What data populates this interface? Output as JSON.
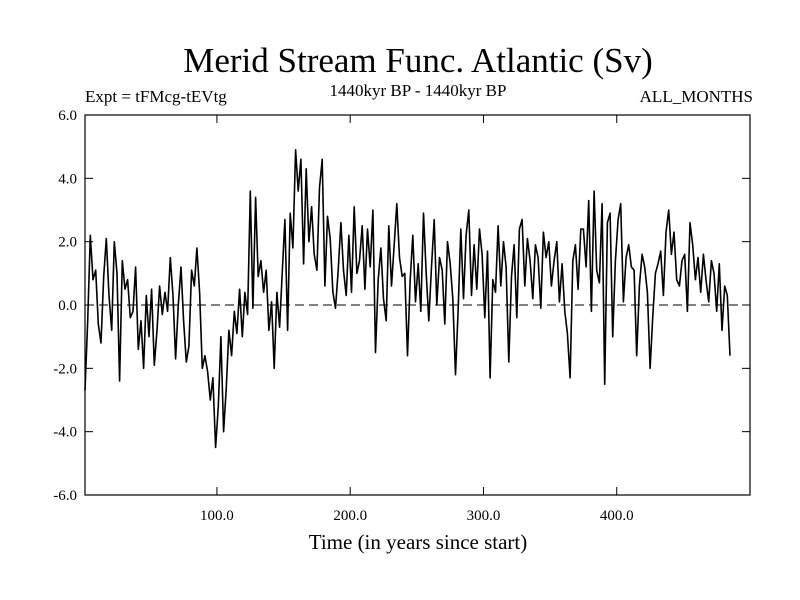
{
  "chart_data": {
    "type": "line",
    "title": "Merid Stream Func. Atlantic (Sv)",
    "subtitle_left": "Expt = tFMcg-tEVtg",
    "subtitle_center": "1440kyr BP - 1440kyr BP",
    "subtitle_right": "ALL_MONTHS",
    "xlabel": "Time (in years since start)",
    "ylabel": "",
    "xlim": [
      1,
      500
    ],
    "ylim": [
      -6,
      6
    ],
    "x_ticks": [
      100,
      200,
      300,
      400
    ],
    "x_tick_labels": [
      "100.0",
      "200.0",
      "300.0",
      "400.0"
    ],
    "y_ticks": [
      -6,
      -4,
      -2,
      0,
      2,
      4,
      6
    ],
    "y_tick_labels": [
      "-6.0",
      "-4.0",
      "-2.0",
      "0.0",
      "2.0",
      "4.0",
      "6.0"
    ],
    "zero_line": "dashed",
    "grid": false,
    "series": [
      {
        "name": "Merid Stream Func. Atlantic",
        "x_start": 1,
        "x_step": 2,
        "values": [
          -2.7,
          -0.5,
          2.2,
          0.8,
          1.1,
          -0.6,
          -1.2,
          0.9,
          2.1,
          0.3,
          -0.8,
          2.0,
          1.0,
          -2.4,
          1.4,
          0.5,
          0.8,
          -0.4,
          -0.2,
          1.2,
          -1.4,
          -0.5,
          -2.0,
          0.3,
          -1.0,
          0.5,
          -1.9,
          -0.8,
          0.6,
          -0.3,
          0.4,
          -0.2,
          1.5,
          0.3,
          -1.7,
          0.0,
          1.2,
          -0.5,
          -1.8,
          -1.3,
          1.1,
          0.6,
          1.8,
          0.4,
          -2.0,
          -1.6,
          -2.1,
          -3.0,
          -2.3,
          -4.5,
          -3.2,
          -1.0,
          -4.0,
          -2.6,
          -0.8,
          -1.6,
          -0.2,
          -0.9,
          0.5,
          -1.0,
          0.4,
          -0.3,
          3.6,
          -0.1,
          3.4,
          0.9,
          1.4,
          0.4,
          1.1,
          -0.8,
          0.1,
          -2.0,
          0.4,
          -0.7,
          1.0,
          2.7,
          -0.8,
          2.9,
          1.8,
          4.9,
          3.6,
          4.6,
          1.3,
          4.3,
          2.0,
          3.1,
          1.6,
          1.1,
          3.7,
          4.6,
          0.6,
          2.8,
          2.1,
          0.4,
          -0.1,
          1.1,
          2.6,
          1.1,
          0.3,
          2.2,
          0.4,
          3.1,
          1.0,
          1.4,
          2.5,
          0.5,
          2.4,
          1.2,
          3.0,
          -1.5,
          0.8,
          1.8,
          0.2,
          -0.5,
          2.5,
          0.6,
          1.9,
          3.2,
          1.5,
          0.9,
          1.0,
          -1.6,
          0.8,
          2.2,
          0.1,
          1.3,
          -0.2,
          2.9,
          1.0,
          -0.5,
          1.2,
          2.7,
          0.0,
          1.5,
          1.1,
          -0.6,
          2.0,
          1.3,
          0.2,
          -2.2,
          -0.2,
          2.4,
          0.2,
          2.2,
          3.0,
          0.3,
          1.9,
          0.5,
          2.4,
          1.6,
          -0.4,
          1.7,
          -2.3,
          0.8,
          0.4,
          2.5,
          0.6,
          2.0,
          1.2,
          -1.8,
          0.9,
          1.9,
          -0.4,
          2.4,
          2.7,
          0.6,
          2.1,
          1.4,
          0.2,
          1.9,
          1.5,
          -0.1,
          2.3,
          1.5,
          2.0,
          0.6,
          1.4,
          2.0,
          0.1,
          1.3,
          -0.2,
          -0.9,
          -2.3,
          1.4,
          1.9,
          0.5,
          2.4,
          2.4,
          1.2,
          3.3,
          -0.2,
          3.6,
          1.1,
          0.7,
          3.2,
          -2.5,
          2.6,
          2.9,
          -1.0,
          1.4,
          2.7,
          3.2,
          0.1,
          1.5,
          1.9,
          1.2,
          1.1,
          -1.6,
          0.6,
          1.6,
          1.2,
          0.4,
          -2.0,
          -0.4,
          1.0,
          1.3,
          1.7,
          0.3,
          2.3,
          3.0,
          1.6,
          2.3,
          0.8,
          0.6,
          1.4,
          1.6,
          -0.2,
          2.6,
          1.9,
          0.8,
          1.5,
          0.4,
          1.6,
          0.8,
          0.1,
          1.4,
          1.0,
          -0.2,
          1.3,
          -0.8,
          0.6,
          0.3,
          -1.6
        ]
      }
    ]
  }
}
